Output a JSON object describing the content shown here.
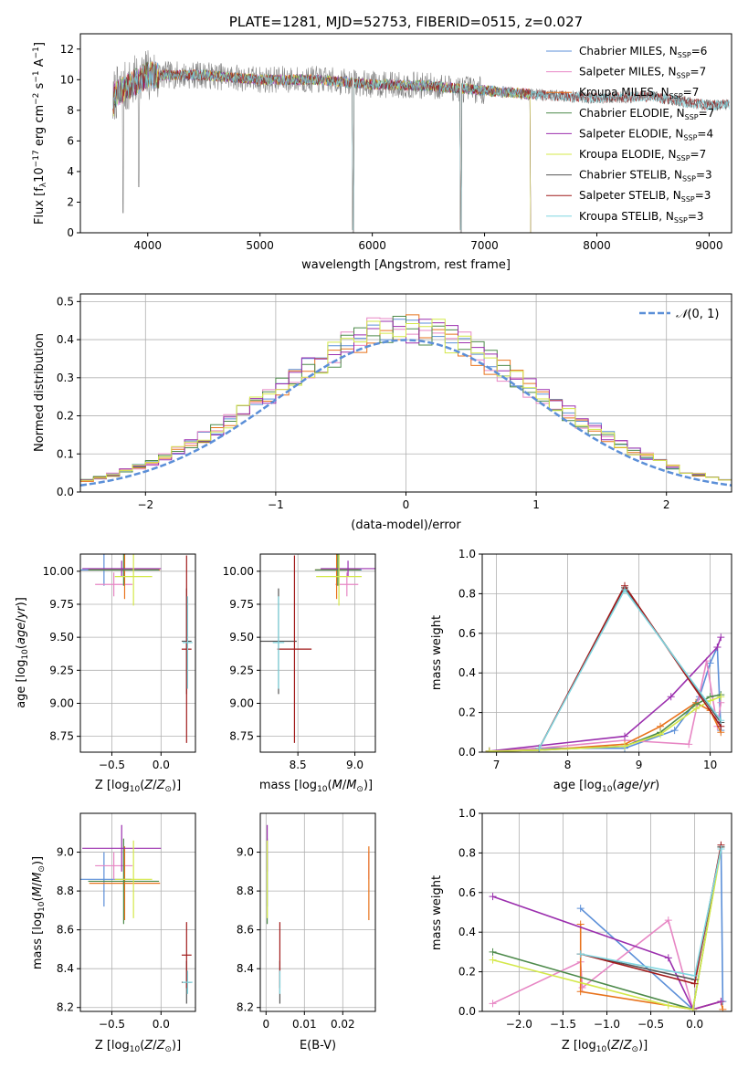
{
  "chart_data": [
    {
      "id": "spectrum",
      "type": "line",
      "title": "PLATE=1281, MJD=52753, FIBERID=0515, z=0.027",
      "xlabel": "wavelength [Angstrom, rest frame]",
      "ylabel": "Flux [f",
      "xlim": [
        3400,
        9200
      ],
      "ylim": [
        0,
        13
      ],
      "xticks": [
        4000,
        5000,
        6000,
        7000,
        8000,
        9000
      ],
      "yticks": [
        0,
        2,
        4,
        6,
        8,
        10,
        12
      ],
      "legend_position": "upper right",
      "grid": false,
      "data_spectrum": {
        "name": "",
        "color": "#808080",
        "x_range": [
          3690,
          9180
        ],
        "level": [
          [
            3700,
            9.0
          ],
          [
            4000,
            10.3
          ],
          [
            4500,
            10.3
          ],
          [
            5000,
            10.0
          ],
          [
            5500,
            10.0
          ],
          [
            6000,
            9.7
          ],
          [
            6500,
            9.6
          ],
          [
            7000,
            9.3
          ],
          [
            7500,
            9.0
          ],
          [
            8000,
            8.8
          ],
          [
            8500,
            8.9
          ],
          [
            9000,
            8.3
          ],
          [
            9180,
            8.4
          ]
        ],
        "dips": [
          {
            "x": 5830,
            "y": 0
          },
          {
            "x": 6790,
            "y": 0
          },
          {
            "x": 3780,
            "y": 1.3
          },
          {
            "x": 3920,
            "y": 3.0
          }
        ]
      },
      "series": [
        {
          "name": "Chabrier MILES, N",
          "sub": "SSP",
          "suffix": "=6",
          "color": "#5b8fd8",
          "x_range": [
            3690,
            7420
          ]
        },
        {
          "name": "Salpeter MILES, N",
          "sub": "SSP",
          "suffix": "=7",
          "color": "#e786c4",
          "x_range": [
            3690,
            7420
          ]
        },
        {
          "name": "Kroupa MILES, N",
          "sub": "SSP",
          "suffix": "=7",
          "color": "#e8731c",
          "x_range": [
            3690,
            7420
          ]
        },
        {
          "name": "Chabrier ELODIE, N",
          "sub": "SSP",
          "suffix": "=7",
          "color": "#4d8a4a",
          "x_range": [
            3690,
            7420
          ]
        },
        {
          "name": "Salpeter ELODIE, N",
          "sub": "SSP",
          "suffix": "=4",
          "color": "#9b2fae",
          "x_range": [
            3690,
            7420
          ]
        },
        {
          "name": "Kroupa ELODIE, N",
          "sub": "SSP",
          "suffix": "=7",
          "color": "#d4e84a",
          "x_range": [
            3690,
            7420
          ]
        },
        {
          "name": "Chabrier STELIB, N",
          "sub": "SSP",
          "suffix": "=3",
          "color": "#555555",
          "x_range": [
            3690,
            9180
          ]
        },
        {
          "name": "Salpeter STELIB, N",
          "sub": "SSP",
          "suffix": "=3",
          "color": "#a01a1a",
          "x_range": [
            3690,
            9180
          ]
        },
        {
          "name": "Kroupa STELIB, N",
          "sub": "SSP",
          "suffix": "=3",
          "color": "#7fd6e0",
          "x_range": [
            3690,
            9180
          ]
        }
      ]
    },
    {
      "id": "residuals",
      "type": "histogram",
      "xlabel": "(data-model)/error",
      "ylabel": "Normed distribution",
      "xlim": [
        -2.5,
        2.5
      ],
      "ylim": [
        0,
        0.52
      ],
      "xticks": [
        -2,
        -1,
        0,
        1,
        2
      ],
      "yticks": [
        0.0,
        0.1,
        0.2,
        0.3,
        0.4,
        0.5
      ],
      "grid": true,
      "legend_position": "upper right",
      "bin_width": 0.1,
      "reference_curve": {
        "name": "N(0,1)",
        "color": "#5b8fd8",
        "style": "dashed"
      },
      "series_colors": [
        "#5b8fd8",
        "#e786c4",
        "#e8731c",
        "#4d8a4a",
        "#9b2fae",
        "#d4e84a"
      ]
    },
    {
      "id": "age_vs_Z",
      "type": "errorbar",
      "xlabel": "Z [log",
      "ylabel": "age  [log",
      "xlim": [
        -0.82,
        0.35
      ],
      "ylim": [
        8.63,
        10.13
      ],
      "xticks": [
        -0.5,
        0.0
      ],
      "yticks": [
        8.75,
        9.0,
        9.25,
        9.5,
        9.75,
        10.0
      ],
      "grid": true,
      "points": [
        {
          "x": -0.58,
          "xerr": 0.28,
          "y": 10.01,
          "yerr": 0.12,
          "color": "#5b8fd8"
        },
        {
          "x": -0.48,
          "xerr": 0.19,
          "y": 9.9,
          "yerr": 0.09,
          "color": "#e786c4"
        },
        {
          "x": -0.37,
          "xerr": 0.36,
          "y": 10.01,
          "yerr": 0.22,
          "color": "#e8731c"
        },
        {
          "x": -0.38,
          "xerr": 0.36,
          "y": 10.01,
          "yerr": 0.12,
          "color": "#4d8a4a"
        },
        {
          "x": -0.4,
          "xerr": 0.4,
          "y": 10.02,
          "yerr": 0.06,
          "color": "#9b2fae"
        },
        {
          "x": -0.28,
          "xerr": 0.19,
          "y": 9.96,
          "yerr": 0.22,
          "color": "#d4e84a"
        },
        {
          "x": 0.26,
          "xerr": 0.05,
          "y": 9.47,
          "yerr": 0.4,
          "color": "#555555"
        },
        {
          "x": 0.26,
          "xerr": 0.05,
          "y": 9.41,
          "yerr": 0.71,
          "color": "#a01a1a"
        },
        {
          "x": 0.27,
          "xerr": 0.05,
          "y": 9.46,
          "yerr": 0.35,
          "color": "#7fd6e0"
        }
      ]
    },
    {
      "id": "age_vs_mass",
      "type": "errorbar",
      "xlabel": "mass [log",
      "ylabel": "",
      "xlim": [
        8.17,
        9.18
      ],
      "ylim": [
        8.63,
        10.13
      ],
      "xticks": [
        8.5,
        9.0
      ],
      "yticks": [
        8.75,
        9.0,
        9.25,
        9.5,
        9.75,
        10.0
      ],
      "grid": true,
      "points": [
        {
          "x": 8.86,
          "xerr": 0.2,
          "y": 10.01,
          "yerr": 0.12,
          "color": "#5b8fd8"
        },
        {
          "x": 8.93,
          "xerr": 0.1,
          "y": 9.9,
          "yerr": 0.09,
          "color": "#e786c4"
        },
        {
          "x": 8.84,
          "xerr": 0.19,
          "y": 10.01,
          "yerr": 0.22,
          "color": "#e8731c"
        },
        {
          "x": 8.85,
          "xerr": 0.2,
          "y": 10.01,
          "yerr": 0.12,
          "color": "#4d8a4a"
        },
        {
          "x": 8.94,
          "xerr": 0.24,
          "y": 10.02,
          "yerr": 0.06,
          "color": "#9b2fae"
        },
        {
          "x": 8.86,
          "xerr": 0.2,
          "y": 9.96,
          "yerr": 0.22,
          "color": "#d4e84a"
        },
        {
          "x": 8.33,
          "xerr": 0.16,
          "y": 9.47,
          "yerr": 0.4,
          "color": "#555555"
        },
        {
          "x": 8.47,
          "xerr": 0.15,
          "y": 9.41,
          "yerr": 0.71,
          "color": "#a01a1a"
        },
        {
          "x": 8.33,
          "xerr": 0.05,
          "y": 9.46,
          "yerr": 0.35,
          "color": "#7fd6e0"
        }
      ]
    },
    {
      "id": "weight_vs_age",
      "type": "line",
      "xlabel": "age  [log",
      "ylabel": "mass weight",
      "xlim": [
        6.8,
        10.3
      ],
      "ylim": [
        0,
        1.0
      ],
      "xticks": [
        7,
        8,
        9,
        10
      ],
      "yticks": [
        0.0,
        0.2,
        0.4,
        0.6,
        0.8,
        1.0
      ],
      "grid": true,
      "series": [
        {
          "color": "#5b8fd8",
          "x": [
            6.9,
            7.6,
            8.8,
            9.5,
            9.85,
            10.0,
            10.1,
            10.15
          ],
          "y": [
            0.005,
            0.02,
            0.02,
            0.11,
            0.28,
            0.45,
            0.53,
            0.11
          ]
        },
        {
          "color": "#e786c4",
          "x": [
            6.9,
            7.6,
            8.8,
            9.7,
            9.95,
            10.1,
            10.15
          ],
          "y": [
            0.005,
            0.02,
            0.06,
            0.04,
            0.46,
            0.13,
            0.25
          ]
        },
        {
          "color": "#e8731c",
          "x": [
            6.9,
            7.6,
            8.8,
            9.3,
            9.8,
            10.0,
            10.15
          ],
          "y": [
            0.005,
            0.01,
            0.04,
            0.13,
            0.25,
            0.21,
            0.1
          ]
        },
        {
          "color": "#4d8a4a",
          "x": [
            6.9,
            7.6,
            8.8,
            9.3,
            9.8,
            10.0,
            10.15
          ],
          "y": [
            0.005,
            0.01,
            0.03,
            0.1,
            0.24,
            0.28,
            0.29
          ]
        },
        {
          "color": "#9b2fae",
          "x": [
            6.9,
            8.8,
            9.45,
            10.1,
            10.15
          ],
          "y": [
            0.005,
            0.08,
            0.28,
            0.53,
            0.58
          ]
        },
        {
          "color": "#d4e84a",
          "x": [
            6.9,
            7.6,
            8.8,
            9.3,
            9.8,
            10.0,
            10.15
          ],
          "y": [
            0.005,
            0.01,
            0.03,
            0.09,
            0.22,
            0.26,
            0.28
          ]
        },
        {
          "color": "#555555",
          "x": [
            7.6,
            8.8,
            10.15
          ],
          "y": [
            0.02,
            0.83,
            0.15
          ]
        },
        {
          "color": "#a01a1a",
          "x": [
            7.6,
            8.8,
            10.15
          ],
          "y": [
            0.02,
            0.84,
            0.13
          ]
        },
        {
          "color": "#7fd6e0",
          "x": [
            7.6,
            8.8,
            10.15
          ],
          "y": [
            0.02,
            0.82,
            0.16
          ]
        }
      ]
    },
    {
      "id": "mass_vs_Z",
      "type": "errorbar",
      "xlabel": "Z [log",
      "ylabel": "mass [log",
      "xlim": [
        -0.82,
        0.35
      ],
      "ylim": [
        8.18,
        9.2
      ],
      "xticks": [
        -0.5,
        0.0
      ],
      "yticks": [
        8.2,
        8.4,
        8.6,
        8.8,
        9.0
      ],
      "grid": true,
      "points": [
        {
          "x": -0.58,
          "xerr": 0.28,
          "y": 8.86,
          "yerr": 0.14,
          "color": "#5b8fd8"
        },
        {
          "x": -0.48,
          "xerr": 0.19,
          "y": 8.93,
          "yerr": 0.07,
          "color": "#e786c4"
        },
        {
          "x": -0.37,
          "xerr": 0.36,
          "y": 8.84,
          "yerr": 0.19,
          "color": "#e8731c"
        },
        {
          "x": -0.38,
          "xerr": 0.36,
          "y": 8.85,
          "yerr": 0.22,
          "color": "#4d8a4a"
        },
        {
          "x": -0.4,
          "xerr": 0.4,
          "y": 9.02,
          "yerr": 0.12,
          "color": "#9b2fae"
        },
        {
          "x": -0.28,
          "xerr": 0.19,
          "y": 8.86,
          "yerr": 0.2,
          "color": "#d4e84a"
        },
        {
          "x": 0.26,
          "xerr": 0.05,
          "y": 8.33,
          "yerr": 0.11,
          "color": "#555555"
        },
        {
          "x": 0.26,
          "xerr": 0.05,
          "y": 8.47,
          "yerr": 0.17,
          "color": "#a01a1a"
        },
        {
          "x": 0.27,
          "xerr": 0.05,
          "y": 8.33,
          "yerr": 0.06,
          "color": "#7fd6e0"
        }
      ]
    },
    {
      "id": "mass_vs_ebv",
      "type": "errorbar",
      "xlabel": "E(B-V)",
      "ylabel": "",
      "xlim": [
        -0.0015,
        0.0285
      ],
      "ylim": [
        8.18,
        9.2
      ],
      "xticks": [
        0.0,
        0.01,
        0.02
      ],
      "yticks": [
        8.2,
        8.4,
        8.6,
        8.8,
        9.0
      ],
      "grid": true,
      "points": [
        {
          "x": 0.0003,
          "xerr": 0,
          "y": 8.86,
          "yerr": 0.14,
          "color": "#5b8fd8"
        },
        {
          "x": 0.0268,
          "xerr": 0,
          "y": 8.93,
          "yerr": 0.07,
          "color": "#e786c4"
        },
        {
          "x": 0.0268,
          "xerr": 0,
          "y": 8.84,
          "yerr": 0.19,
          "color": "#e8731c"
        },
        {
          "x": 0.0003,
          "xerr": 0,
          "y": 8.85,
          "yerr": 0.22,
          "color": "#4d8a4a"
        },
        {
          "x": 0.0003,
          "xerr": 0,
          "y": 9.02,
          "yerr": 0.12,
          "color": "#9b2fae"
        },
        {
          "x": 0.0003,
          "xerr": 0,
          "y": 8.86,
          "yerr": 0.2,
          "color": "#d4e84a"
        },
        {
          "x": 0.0036,
          "xerr": 0,
          "y": 8.33,
          "yerr": 0.11,
          "color": "#555555"
        },
        {
          "x": 0.0036,
          "xerr": 0,
          "y": 8.47,
          "yerr": 0.17,
          "color": "#a01a1a"
        },
        {
          "x": 0.0036,
          "xerr": 0,
          "y": 8.33,
          "yerr": 0.06,
          "color": "#7fd6e0"
        }
      ]
    },
    {
      "id": "weight_vs_Z",
      "type": "line",
      "xlabel": "Z [log",
      "ylabel": "mass weight",
      "xlim": [
        -2.42,
        0.42
      ],
      "ylim": [
        0,
        1.0
      ],
      "xticks": [
        -2.0,
        -1.5,
        -1.0,
        -0.5,
        0.0
      ],
      "yticks": [
        0.0,
        0.2,
        0.4,
        0.6,
        0.8,
        1.0
      ],
      "grid": true,
      "series": [
        {
          "color": "#5b8fd8",
          "x": [
            -1.3,
            -0.02,
            0.3,
            0.32
          ],
          "y": [
            0.52,
            0.01,
            0.83,
            0.05
          ]
        },
        {
          "color": "#e786c4",
          "x": [
            -2.3,
            -1.3,
            -1.28,
            -0.3,
            -0.02,
            0.3
          ],
          "y": [
            0.04,
            0.25,
            0.12,
            0.46,
            0.01,
            0.05
          ]
        },
        {
          "color": "#e8731c",
          "x": [
            -1.3,
            -1.3,
            -0.02,
            0.3,
            0.32
          ],
          "y": [
            0.44,
            0.1,
            0.01,
            0.05,
            0.01
          ]
        },
        {
          "color": "#4d8a4a",
          "x": [
            -2.3,
            -0.02,
            0.3
          ],
          "y": [
            0.3,
            0.01,
            0.83
          ]
        },
        {
          "color": "#9b2fae",
          "x": [
            -2.3,
            -0.3,
            -0.02,
            0.3
          ],
          "y": [
            0.58,
            0.27,
            0.01,
            0.05
          ]
        },
        {
          "color": "#d4e84a",
          "x": [
            -2.3,
            -0.3,
            -0.02,
            0.3
          ],
          "y": [
            0.26,
            0.03,
            0.01,
            0.82
          ]
        },
        {
          "color": "#555555",
          "x": [
            -1.3,
            0.0,
            0.3
          ],
          "y": [
            0.29,
            0.16,
            0.83
          ]
        },
        {
          "color": "#a01a1a",
          "x": [
            -1.3,
            0.0,
            0.3
          ],
          "y": [
            0.29,
            0.14,
            0.84
          ]
        },
        {
          "color": "#7fd6e0",
          "x": [
            -1.3,
            0.0,
            0.3
          ],
          "y": [
            0.29,
            0.18,
            0.82
          ]
        }
      ]
    }
  ]
}
